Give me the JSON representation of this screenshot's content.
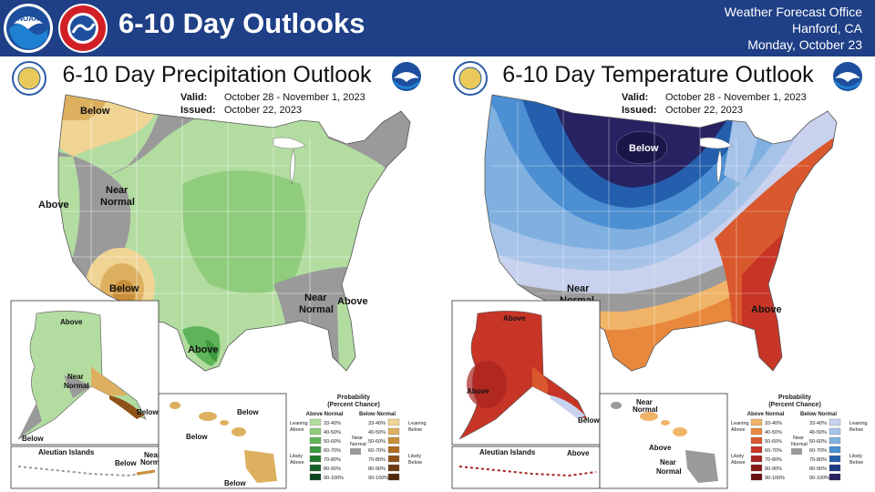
{
  "header": {
    "title": "6-10 Day Outlooks",
    "office_line1": "Weather Forecast Office",
    "office_line2": "Hanford, CA",
    "office_line3": "Monday, October 23",
    "bg_color": "#1f3f86"
  },
  "logos": [
    "noaa-logo",
    "nws-logo"
  ],
  "precip": {
    "title": "6-10 Day Precipitation Outlook",
    "valid_label": "Valid:",
    "valid": "October 28 - November 1, 2023",
    "issued_label": "Issued:",
    "issued": "October 22, 2023",
    "map_labels": {
      "below_nw": "Below",
      "above_w": "Above",
      "near": "Near",
      "normal": "Normal",
      "below_sw": "Below",
      "above_tx": "Above",
      "near_se": "Near",
      "normal_se": "Normal",
      "above_se": "Above"
    },
    "ak_labels": {
      "above": "Above",
      "near": "Near",
      "normal": "Normal",
      "below_se": "Below",
      "below_w": "Below"
    },
    "aleutian_title": "Aleutian Islands",
    "aleutian_labels": {
      "below": "Below",
      "near": "Near",
      "normal": "Normal"
    },
    "hi_labels": {
      "below1": "Below",
      "below2": "Below",
      "below3": "Below"
    }
  },
  "temp": {
    "title": "6-10 Day Temperature Outlook",
    "valid_label": "Valid:",
    "valid": "October 28 - November 1, 2023",
    "issued_label": "Issued:",
    "issued": "October 22, 2023",
    "map_labels": {
      "below_n": "Below",
      "near": "Near",
      "normal": "Normal",
      "above_se": "Above"
    },
    "ak_labels": {
      "above_n": "Above",
      "above_sw": "Above",
      "below_se": "Below"
    },
    "aleutian_title": "Aleutian Islands",
    "aleutian_labels": {
      "above": "Above"
    },
    "hi_labels": {
      "near1": "Near",
      "normal1": "Normal",
      "above": "Above",
      "near2": "Near",
      "normal2": "Normal"
    }
  },
  "legend": {
    "title1": "Probability",
    "title2": "(Percent Chance)",
    "precip_above_header": "Above Normal",
    "precip_below_header": "Below Normal",
    "temp_above_header": "Above Normal",
    "temp_below_header": "Below Normal",
    "near_label1": "Near",
    "near_label2": "Normal",
    "leaning_above1": "Leaning",
    "leaning_above2": "Above",
    "likely_above1": "Likely",
    "likely_above2": "Above",
    "leaning_below1": "Leaning",
    "leaning_below2": "Below",
    "likely_below1": "Likely",
    "likely_below2": "Below",
    "ranges": [
      "33-40%",
      "40-50%",
      "50-60%",
      "60-70%",
      "70-80%",
      "80-90%",
      "90-100%"
    ],
    "precip_above_colors": [
      "#b3dca0",
      "#8fcc7c",
      "#5fb459",
      "#3e9a3e",
      "#237a2f",
      "#165e27",
      "#0e451d"
    ],
    "precip_below_colors": [
      "#f0d493",
      "#ddb060",
      "#c98e3a",
      "#b06e25",
      "#8f5219",
      "#6e3a12",
      "#52280c"
    ],
    "temp_above_colors": [
      "#f0b468",
      "#e8883c",
      "#d9582d",
      "#c73527",
      "#a8231f",
      "#861818",
      "#661010"
    ],
    "temp_below_colors": [
      "#c8d2ee",
      "#a7c3e8",
      "#7fb0e0",
      "#4c8fd2",
      "#245fad",
      "#1e3a86",
      "#272262"
    ],
    "near_color": "#9a9a9a"
  }
}
